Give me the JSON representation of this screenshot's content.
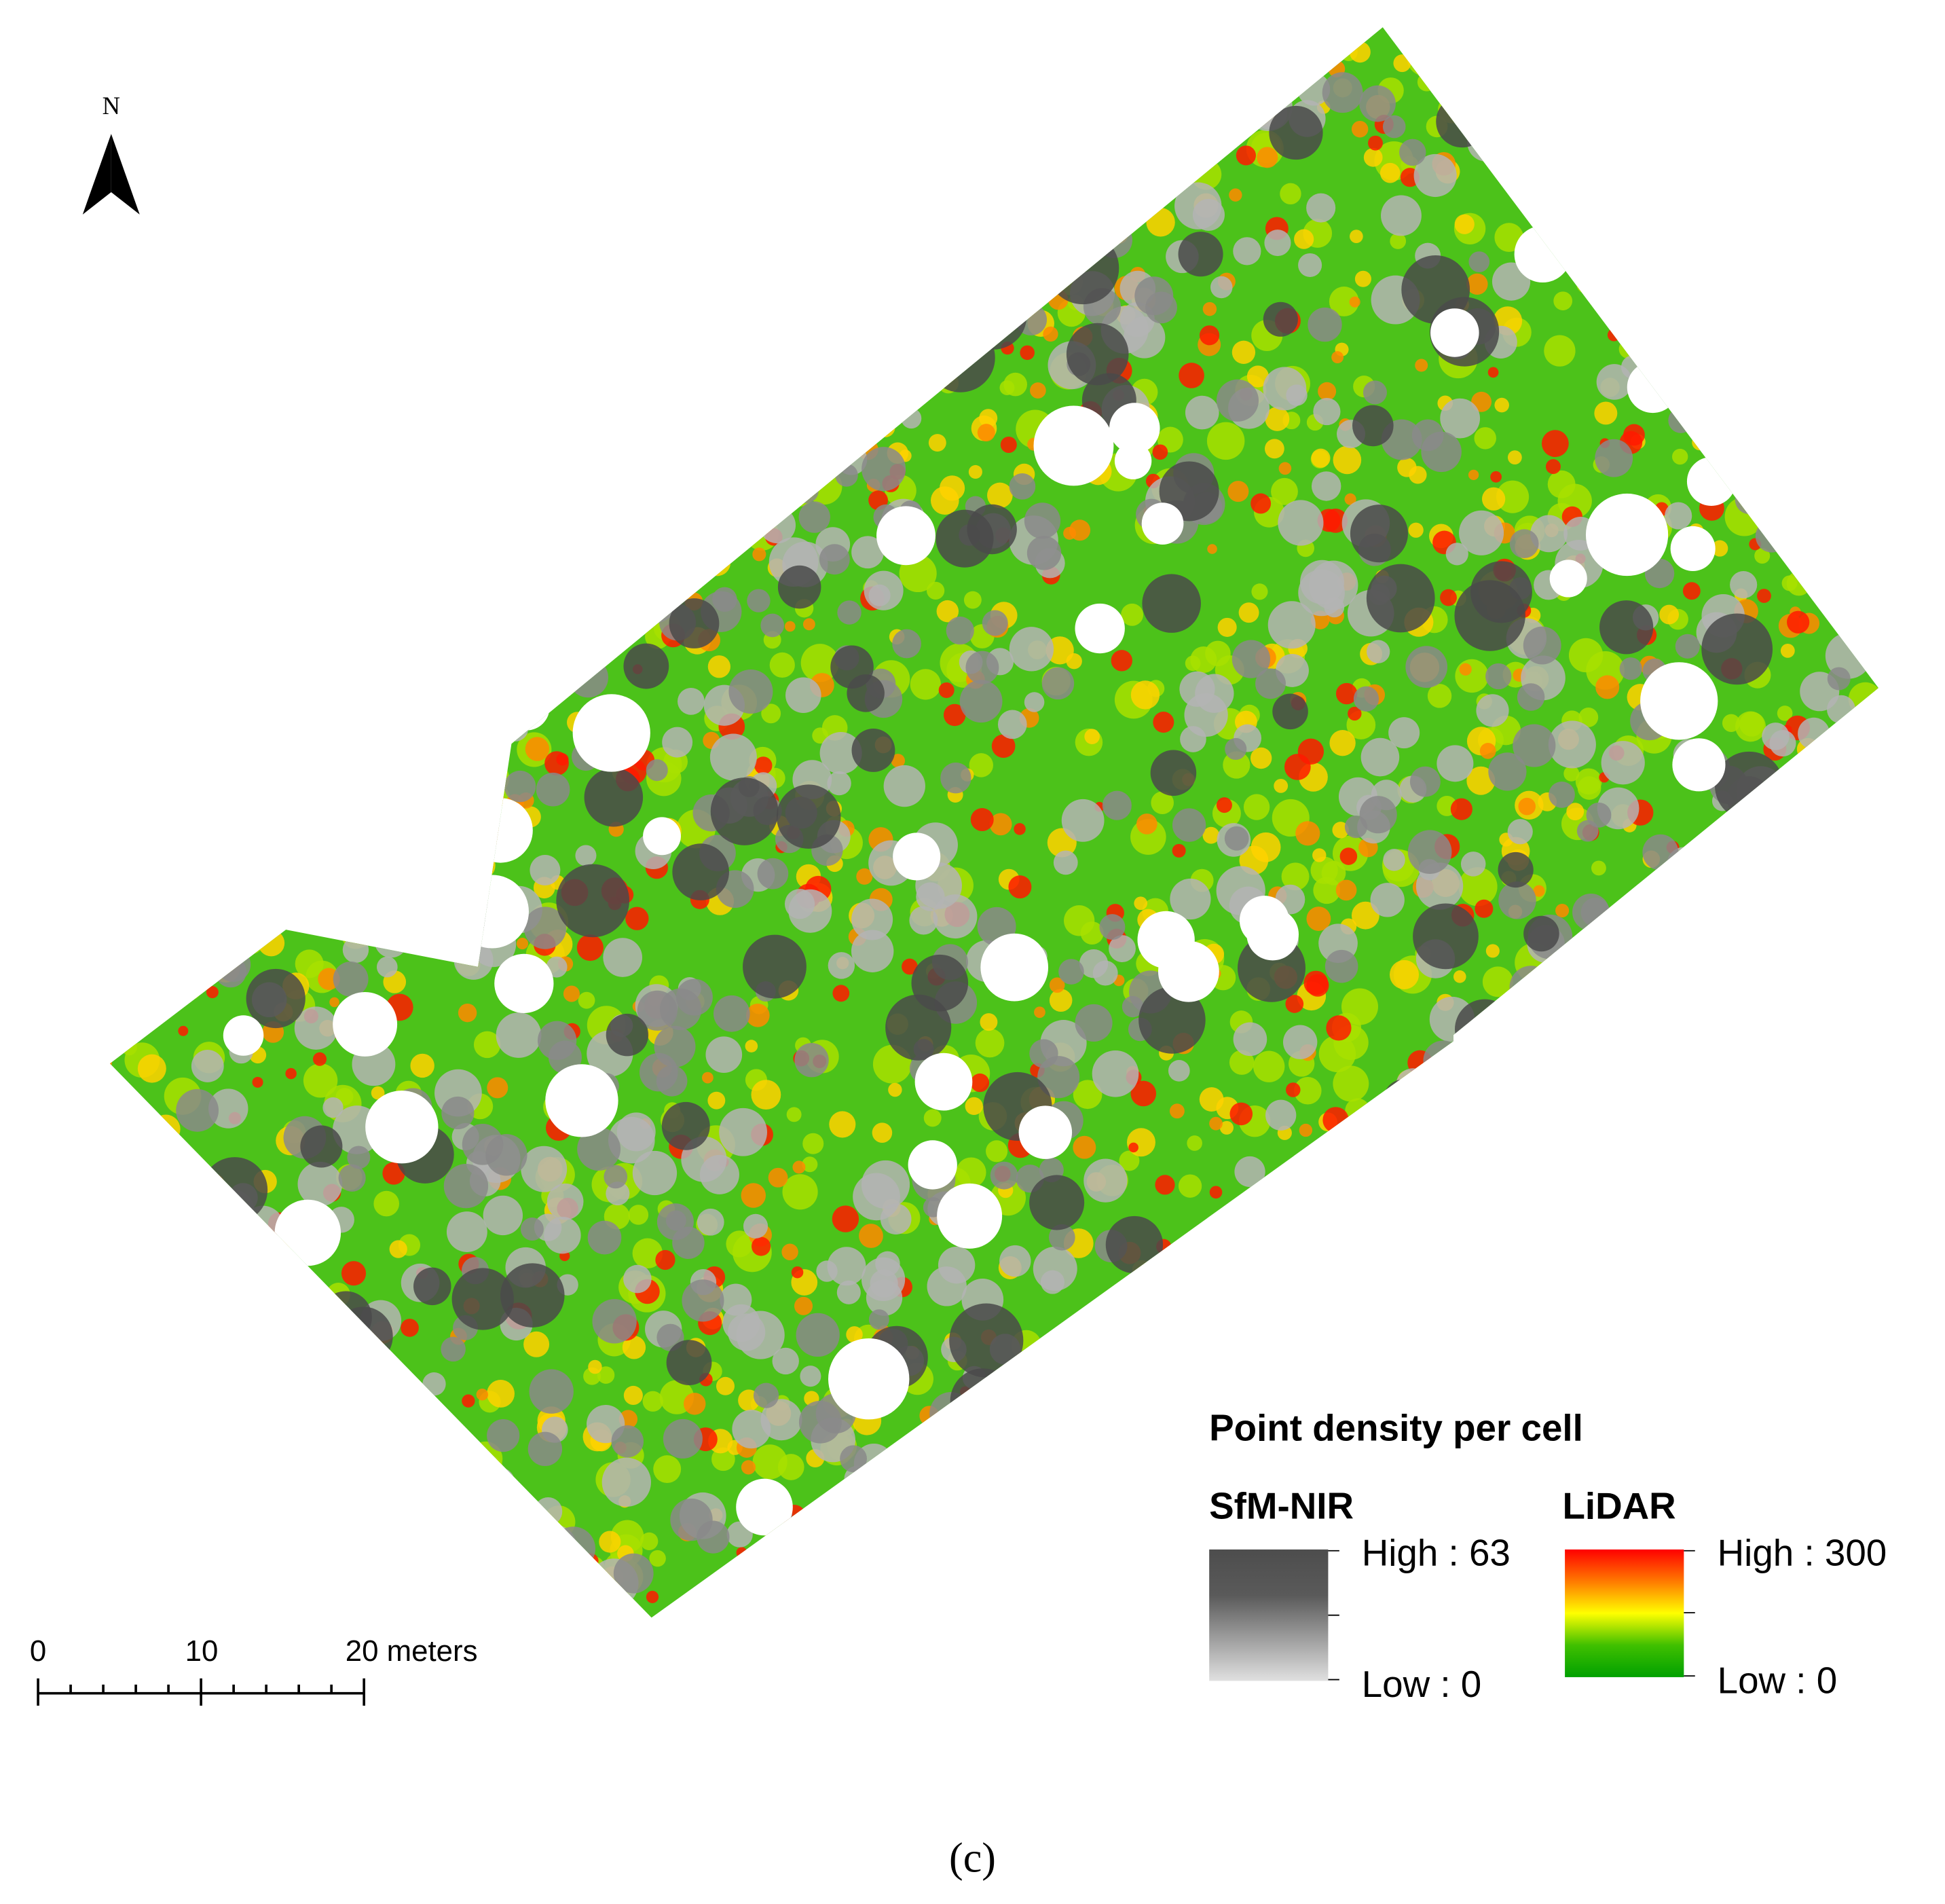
{
  "north": "N",
  "legend": {
    "title": "Point density per cell",
    "sfm": {
      "name": "SfM-NIR",
      "high": "High : 63",
      "low": "Low : 0"
    },
    "lidar": {
      "name": "LiDAR",
      "high": "High : 300",
      "low": "Low : 0"
    }
  },
  "scale_bar": {
    "labels": [
      "0",
      "10",
      "20 meters"
    ]
  },
  "caption": "(c)"
}
